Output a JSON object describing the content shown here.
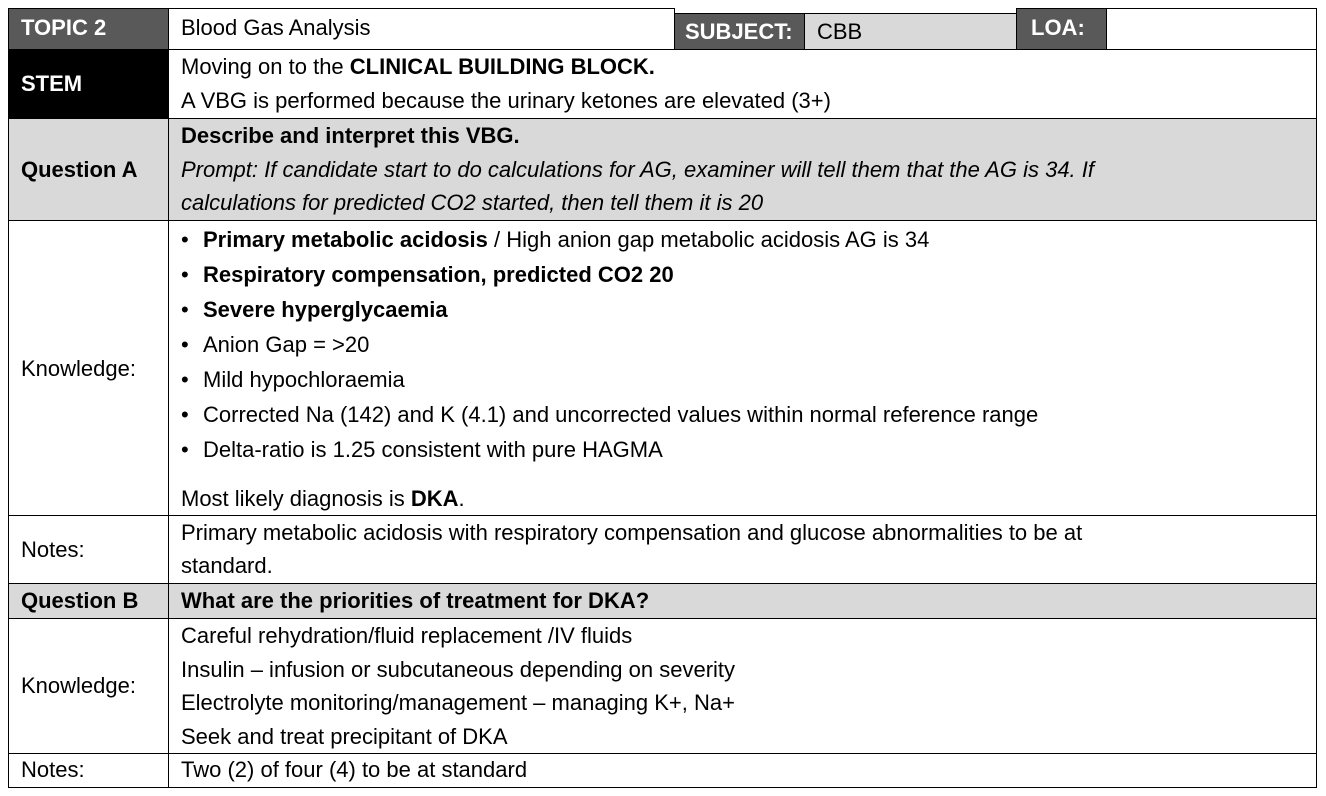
{
  "header": {
    "topic_label": "TOPIC 2",
    "topic_value": "Blood Gas Analysis",
    "subject_label": "SUBJECT:",
    "subject_value": "CBB",
    "loa_label": "LOA:",
    "loa_value": ""
  },
  "stem": {
    "label": "STEM",
    "line1_prefix": "Moving on to the ",
    "line1_bold": "CLINICAL BUILDING BLOCK.",
    "line2": "A VBG is performed because the urinary ketones are elevated (3+)"
  },
  "question_a": {
    "label": "Question A",
    "title": "Describe and interpret this VBG.",
    "prompt_line1": "Prompt: If candidate start to do calculations for AG, examiner will tell them that the AG is 34. If",
    "prompt_line2": "calculations for predicted CO2 started, then tell them it is 20"
  },
  "knowledge_a": {
    "label": "Knowledge:",
    "bullet": "•",
    "items": [
      {
        "bold": "Primary metabolic acidosis",
        "rest": " / High anion gap metabolic acidosis AG is 34"
      },
      {
        "bold": "Respiratory compensation, predicted CO2 20",
        "rest": ""
      },
      {
        "bold": "Severe hyperglycaemia",
        "rest": ""
      },
      {
        "bold": "",
        "rest": "Anion Gap = >20"
      },
      {
        "bold": "",
        "rest": "Mild hypochloraemia"
      },
      {
        "bold": "",
        "rest": "Corrected Na (142) and K (4.1) and uncorrected values within normal reference range"
      },
      {
        "bold": "",
        "rest": "Delta-ratio is 1.25 consistent with pure HAGMA"
      }
    ],
    "diagnosis_prefix": "Most likely diagnosis is ",
    "diagnosis_bold": "DKA",
    "diagnosis_suffix": "."
  },
  "notes_a": {
    "label": "Notes:",
    "line1": "Primary metabolic acidosis with respiratory compensation and glucose abnormalities to be at",
    "line2": "standard."
  },
  "question_b": {
    "label": "Question B",
    "title": "What are the priorities of treatment for DKA?"
  },
  "knowledge_b": {
    "label": "Knowledge:",
    "items": [
      "Careful rehydration/fluid replacement /IV fluids",
      "Insulin – infusion or subcutaneous depending on severity",
      "Electrolyte monitoring/management – managing K+, Na+",
      "Seek and treat precipitant of DKA"
    ]
  },
  "notes_b": {
    "label": "Notes:",
    "text": "Two (2) of four (4) to be at standard"
  }
}
